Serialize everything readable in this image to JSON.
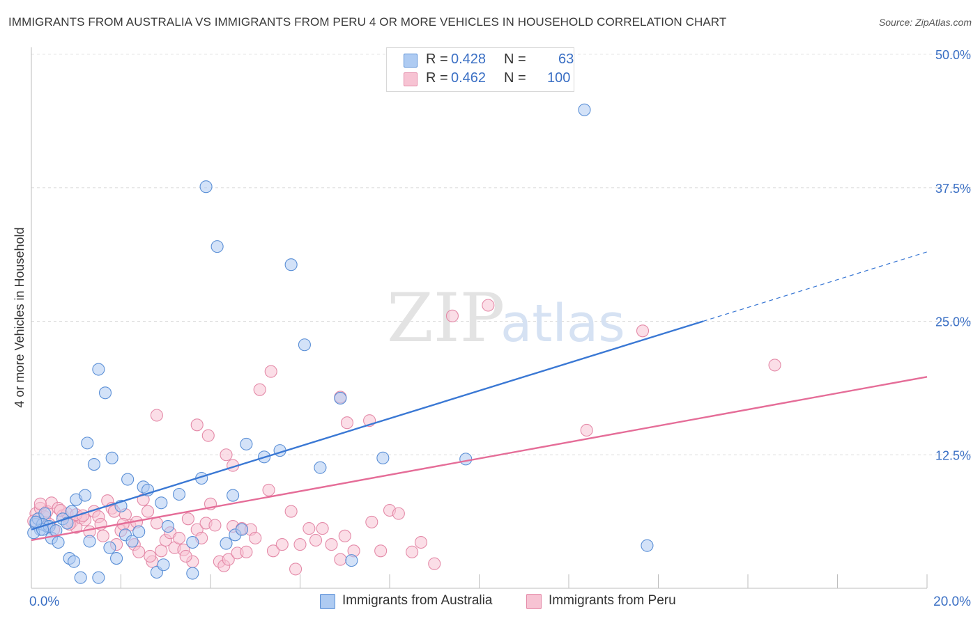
{
  "title": "IMMIGRANTS FROM AUSTRALIA VS IMMIGRANTS FROM PERU 4 OR MORE VEHICLES IN HOUSEHOLD CORRELATION CHART",
  "source": "Source: ZipAtlas.com",
  "watermark": {
    "zip": "ZIP",
    "atlas": "atlas"
  },
  "legend": {
    "r_label": "R =",
    "n_label": "N =",
    "series": [
      {
        "name": "Immigrants from Australia",
        "r": "0.428",
        "n": "63"
      },
      {
        "name": "Immigrants from Peru",
        "r": "0.462",
        "n": "100"
      }
    ]
  },
  "chart_data": {
    "type": "scatter",
    "title": "IMMIGRANTS FROM AUSTRALIA VS IMMIGRANTS FROM PERU 4 OR MORE VEHICLES IN HOUSEHOLD CORRELATION CHART",
    "xlabel": "",
    "ylabel": "4 or more Vehicles in Household",
    "xlim": [
      0,
      20
    ],
    "ylim": [
      0,
      50
    ],
    "x_tick_labels": [
      "0.0%",
      "20.0%"
    ],
    "y_ticks": [
      12.5,
      25.0,
      37.5,
      50.0
    ],
    "y_tick_labels": [
      "12.5%",
      "25.0%",
      "37.5%",
      "50.0%"
    ],
    "grid": true,
    "colors": {
      "australia": "#3a78d4",
      "peru": "#e56d98",
      "australia_fill": "#aecbf2",
      "peru_fill": "#f7c3d3"
    },
    "series": [
      {
        "name": "Immigrants from Australia",
        "trend": {
          "x0": 0,
          "y0": 5.5,
          "x1": 15.0,
          "y1": 25.0,
          "dash_to_x": 20,
          "dash_to_y": 31.5
        },
        "points": [
          [
            0.1,
            6.0
          ],
          [
            0.15,
            6.5
          ],
          [
            0.2,
            5.5
          ],
          [
            0.3,
            7.0
          ],
          [
            0.35,
            5.8
          ],
          [
            0.45,
            4.7
          ],
          [
            0.6,
            4.3
          ],
          [
            0.7,
            6.5
          ],
          [
            0.8,
            6.1
          ],
          [
            0.9,
            7.2
          ],
          [
            1.0,
            8.3
          ],
          [
            0.85,
            2.8
          ],
          [
            0.95,
            2.5
          ],
          [
            1.2,
            8.7
          ],
          [
            1.3,
            4.4
          ],
          [
            1.1,
            1.0
          ],
          [
            1.5,
            1.0
          ],
          [
            1.75,
            3.8
          ],
          [
            1.9,
            2.8
          ],
          [
            2.1,
            5.0
          ],
          [
            2.25,
            4.4
          ],
          [
            2.4,
            5.3
          ],
          [
            2.5,
            9.5
          ],
          [
            2.6,
            9.2
          ],
          [
            2.8,
            1.5
          ],
          [
            2.95,
            2.2
          ],
          [
            3.05,
            5.8
          ],
          [
            2.9,
            8.0
          ],
          [
            3.3,
            8.8
          ],
          [
            3.6,
            4.3
          ],
          [
            3.8,
            10.3
          ],
          [
            3.6,
            1.4
          ],
          [
            4.35,
            4.2
          ],
          [
            4.55,
            5.0
          ],
          [
            4.7,
            5.5
          ],
          [
            4.5,
            8.7
          ],
          [
            4.8,
            13.5
          ],
          [
            5.2,
            12.3
          ],
          [
            5.55,
            12.9
          ],
          [
            6.45,
            11.3
          ],
          [
            6.9,
            17.8
          ],
          [
            7.15,
            2.6
          ],
          [
            7.85,
            12.2
          ],
          [
            9.7,
            12.1
          ],
          [
            1.5,
            20.5
          ],
          [
            1.65,
            18.3
          ],
          [
            1.25,
            13.6
          ],
          [
            1.4,
            11.6
          ],
          [
            1.8,
            12.2
          ],
          [
            2.15,
            10.2
          ],
          [
            2.0,
            7.7
          ],
          [
            3.9,
            37.6
          ],
          [
            4.15,
            32.0
          ],
          [
            5.8,
            30.3
          ],
          [
            6.1,
            22.8
          ],
          [
            12.35,
            44.8
          ],
          [
            13.75,
            4.0
          ],
          [
            0.05,
            5.2
          ],
          [
            0.25,
            6.0
          ],
          [
            0.4,
            5.8
          ],
          [
            0.55,
            5.4
          ],
          [
            0.25,
            5.5
          ],
          [
            0.1,
            6.2
          ]
        ]
      },
      {
        "name": "Immigrants from Peru",
        "trend": {
          "x0": 0,
          "y0": 4.5,
          "x1": 20,
          "y1": 19.8
        },
        "points": [
          [
            0.1,
            7.0
          ],
          [
            0.15,
            6.5
          ],
          [
            0.2,
            7.5
          ],
          [
            0.3,
            6.7
          ],
          [
            0.35,
            7.2
          ],
          [
            0.45,
            8.0
          ],
          [
            0.5,
            5.5
          ],
          [
            0.6,
            7.5
          ],
          [
            0.7,
            6.8
          ],
          [
            0.8,
            7.0
          ],
          [
            0.9,
            6.2
          ],
          [
            1.0,
            5.7
          ],
          [
            1.1,
            6.6
          ],
          [
            1.2,
            6.4
          ],
          [
            1.3,
            5.3
          ],
          [
            1.4,
            7.2
          ],
          [
            1.5,
            6.7
          ],
          [
            1.6,
            4.9
          ],
          [
            1.7,
            8.2
          ],
          [
            1.8,
            7.5
          ],
          [
            1.9,
            4.1
          ],
          [
            2.0,
            5.4
          ],
          [
            2.1,
            6.9
          ],
          [
            2.2,
            5.9
          ],
          [
            2.3,
            4.1
          ],
          [
            2.4,
            3.4
          ],
          [
            2.5,
            8.3
          ],
          [
            2.6,
            7.2
          ],
          [
            2.7,
            2.5
          ],
          [
            2.8,
            6.1
          ],
          [
            2.9,
            3.5
          ],
          [
            3.0,
            4.5
          ],
          [
            3.1,
            5.2
          ],
          [
            3.2,
            3.8
          ],
          [
            3.3,
            4.7
          ],
          [
            3.4,
            3.6
          ],
          [
            3.5,
            6.5
          ],
          [
            3.6,
            2.5
          ],
          [
            3.7,
            5.5
          ],
          [
            3.8,
            4.7
          ],
          [
            3.9,
            6.1
          ],
          [
            4.0,
            7.9
          ],
          [
            4.1,
            5.9
          ],
          [
            4.2,
            2.5
          ],
          [
            4.3,
            2.1
          ],
          [
            4.4,
            2.7
          ],
          [
            4.5,
            5.8
          ],
          [
            4.6,
            3.3
          ],
          [
            4.7,
            5.6
          ],
          [
            4.8,
            3.4
          ],
          [
            4.9,
            5.5
          ],
          [
            5.0,
            4.7
          ],
          [
            5.3,
            9.2
          ],
          [
            5.4,
            3.5
          ],
          [
            5.6,
            4.1
          ],
          [
            5.8,
            7.2
          ],
          [
            5.9,
            1.8
          ],
          [
            6.0,
            4.1
          ],
          [
            6.2,
            5.6
          ],
          [
            6.5,
            5.6
          ],
          [
            6.7,
            4.1
          ],
          [
            6.9,
            2.7
          ],
          [
            7.0,
            4.9
          ],
          [
            7.2,
            3.5
          ],
          [
            7.6,
            6.2
          ],
          [
            7.8,
            3.5
          ],
          [
            8.0,
            7.3
          ],
          [
            8.2,
            7.0
          ],
          [
            8.5,
            3.4
          ],
          [
            8.7,
            4.3
          ],
          [
            9.0,
            2.3
          ],
          [
            0.2,
            7.9
          ],
          [
            2.8,
            16.2
          ],
          [
            3.7,
            15.3
          ],
          [
            3.95,
            14.3
          ],
          [
            4.35,
            12.5
          ],
          [
            4.5,
            11.5
          ],
          [
            5.1,
            18.6
          ],
          [
            5.35,
            20.3
          ],
          [
            6.35,
            4.5
          ],
          [
            6.9,
            17.9
          ],
          [
            7.05,
            15.5
          ],
          [
            7.55,
            15.7
          ],
          [
            9.4,
            25.5
          ],
          [
            10.2,
            26.5
          ],
          [
            12.4,
            14.8
          ],
          [
            13.65,
            24.1
          ],
          [
            16.6,
            20.9
          ],
          [
            1.55,
            6.0
          ],
          [
            1.0,
            6.9
          ],
          [
            0.85,
            6.0
          ],
          [
            2.35,
            6.2
          ],
          [
            3.45,
            3.0
          ],
          [
            0.05,
            6.3
          ],
          [
            0.4,
            6.0
          ],
          [
            0.65,
            7.3
          ],
          [
            1.15,
            6.8
          ],
          [
            1.85,
            7.2
          ],
          [
            2.05,
            6.0
          ],
          [
            2.65,
            3.0
          ]
        ]
      }
    ]
  }
}
